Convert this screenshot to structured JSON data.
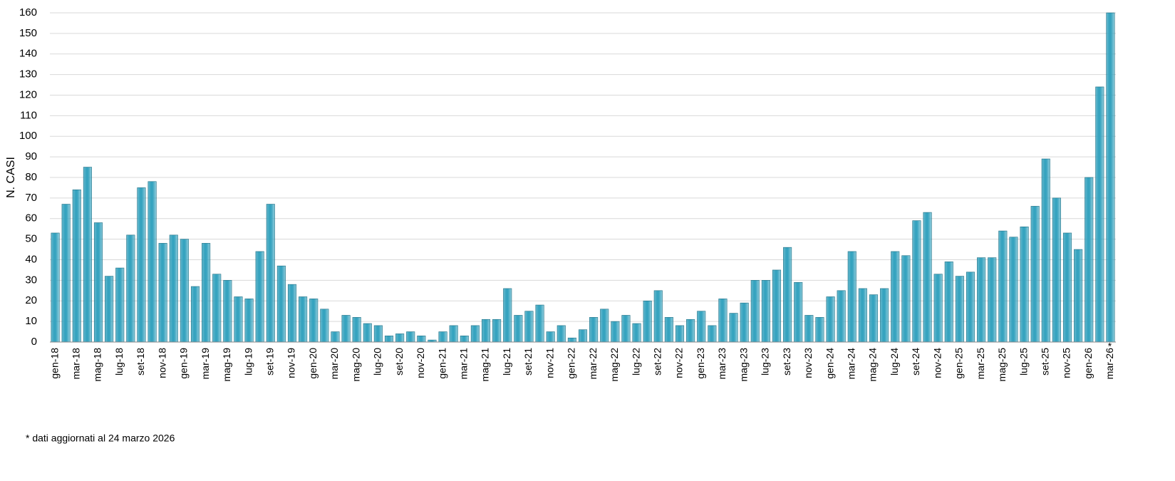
{
  "chart_data": {
    "type": "bar",
    "y_label": "N. CASI",
    "annotation": "*",
    "footnote": "* dati aggiornati al 24 marzo 2026",
    "color": "#36a3bf",
    "grid": true,
    "ylim": [
      0,
      160
    ],
    "yticks": [
      0,
      10,
      20,
      30,
      40,
      50,
      60,
      70,
      80,
      90,
      100,
      110,
      120,
      130,
      140,
      150,
      160
    ],
    "categories": [
      "gen-18",
      null,
      "mar-18",
      null,
      "mag-18",
      null,
      "lug-18",
      null,
      "set-18",
      null,
      "nov-18",
      null,
      "gen-19",
      null,
      "mar-19",
      null,
      "mag-19",
      null,
      "lug-19",
      null,
      "set-19",
      null,
      "nov-19",
      null,
      "gen-20",
      null,
      "mar-20",
      null,
      "mag-20",
      null,
      "lug-20",
      null,
      "set-20",
      null,
      "nov-20",
      null,
      "gen-21",
      null,
      "mar-21",
      null,
      "mag-21",
      null,
      "lug-21",
      null,
      "set-21",
      null,
      "nov-21",
      null,
      "gen-22",
      null,
      "mar-22",
      null,
      "mag-22",
      null,
      "lug-22",
      null,
      "set-22",
      null,
      "nov-22",
      null,
      "gen-23",
      null,
      "mar-23",
      null,
      "mag-23",
      null,
      "lug-23",
      null,
      "set-23",
      null,
      "nov-23",
      null,
      "gen-24",
      null,
      "mar-24",
      null,
      "mag-24",
      null,
      "lug-24",
      null,
      "set-24",
      null,
      "nov-24",
      null,
      "gen-25",
      null,
      "mar-25",
      null,
      "mag-25",
      null,
      "lug-25",
      null,
      "set-25",
      null,
      "nov-25",
      null,
      "gen-26",
      null,
      "mar-26"
    ],
    "values": [
      53,
      67,
      74,
      85,
      58,
      32,
      36,
      52,
      75,
      78,
      48,
      52,
      50,
      27,
      48,
      33,
      30,
      22,
      21,
      44,
      67,
      37,
      28,
      22,
      21,
      16,
      5,
      13,
      12,
      9,
      8,
      3,
      4,
      5,
      3,
      1,
      5,
      8,
      3,
      8,
      11,
      11,
      26,
      13,
      15,
      18,
      5,
      8,
      2,
      6,
      12,
      16,
      10,
      13,
      9,
      20,
      25,
      12,
      8,
      11,
      15,
      8,
      21,
      14,
      19,
      30,
      30,
      35,
      46,
      29,
      13,
      12,
      22,
      25,
      44,
      26,
      23,
      26,
      44,
      42,
      59,
      63,
      33,
      39,
      32,
      34,
      41,
      41,
      54,
      51,
      56,
      66,
      89,
      70,
      53,
      45,
      80,
      124,
      160
    ]
  }
}
